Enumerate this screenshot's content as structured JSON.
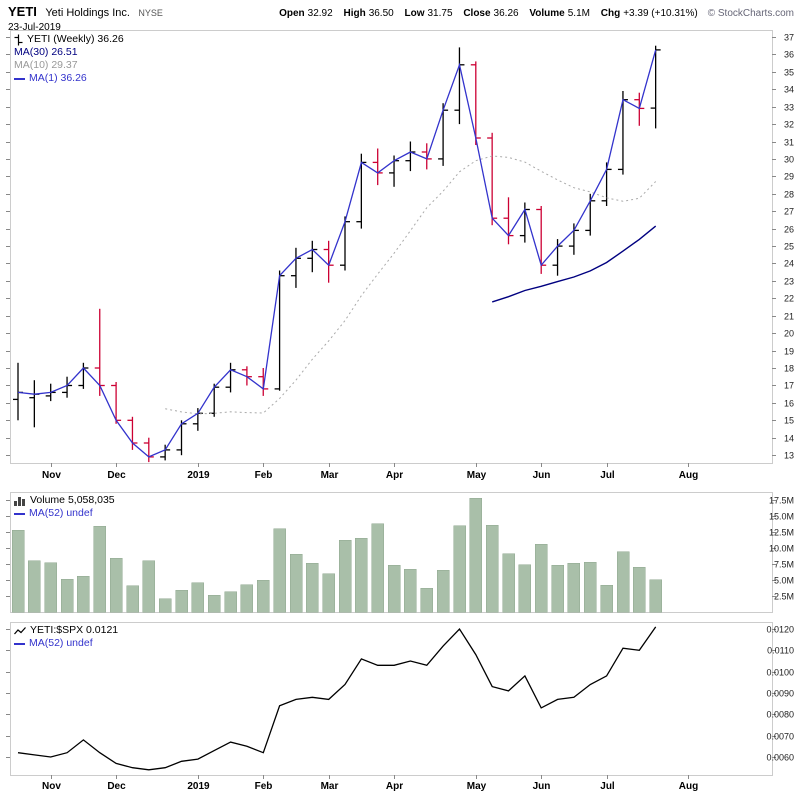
{
  "header": {
    "symbol": "YETI",
    "company": "Yeti Holdings Inc.",
    "exchange": "NYSE",
    "date": "23-Jul-2019",
    "copyright": "© StockCharts.com",
    "quote": {
      "open_label": "Open",
      "open_value": "32.92",
      "high_label": "High",
      "high_value": "36.50",
      "low_label": "Low",
      "low_value": "31.75",
      "close_label": "Close",
      "close_value": "36.26",
      "volume_label": "Volume",
      "volume_value": "5.1M",
      "chg_label": "Chg",
      "chg_value": "+3.39 (+10.31%)"
    }
  },
  "legends": {
    "price": {
      "main": "YETI (Weekly) 36.26",
      "ma30": "MA(30) 26.51",
      "ma10": "MA(10) 29.37",
      "ma1": "MA(1) 36.26"
    },
    "volume": {
      "main": "Volume 5,058,035",
      "ma52": "MA(52) undef"
    },
    "ratio": {
      "main": "YETI:$SPX 0.0121",
      "ma52": "MA(52) undef"
    }
  },
  "colors": {
    "up_bar": "#000000",
    "down_bar": "#cc0033",
    "close_line": "#3333cc",
    "ma10_line": "#aaaaaa",
    "ma30_line": "#000080",
    "volume_bar": "#a9bfa9",
    "volume_bar_edge": "#8fa78f",
    "ratio_line": "#000000",
    "axis_text": "#222222",
    "tick": "#888888",
    "panel_border": "#cccccc"
  },
  "chart_data": [
    {
      "type": "ohlc",
      "title": "YETI (Weekly)",
      "timeframe": "weekly",
      "dates": [
        "2018-10-22",
        "2018-10-29",
        "2018-11-05",
        "2018-11-12",
        "2018-11-19",
        "2018-11-26",
        "2018-12-03",
        "2018-12-10",
        "2018-12-17",
        "2018-12-24",
        "2018-12-31",
        "2019-01-07",
        "2019-01-14",
        "2019-01-21",
        "2019-01-28",
        "2019-02-04",
        "2019-02-11",
        "2019-02-18",
        "2019-02-25",
        "2019-03-04",
        "2019-03-11",
        "2019-03-18",
        "2019-03-25",
        "2019-04-01",
        "2019-04-08",
        "2019-04-15",
        "2019-04-22",
        "2019-04-29",
        "2019-05-06",
        "2019-05-13",
        "2019-05-20",
        "2019-05-27",
        "2019-06-03",
        "2019-06-10",
        "2019-06-17",
        "2019-06-24",
        "2019-07-01",
        "2019-07-08",
        "2019-07-15",
        "2019-07-22"
      ],
      "open": [
        16.2,
        16.3,
        16.4,
        16.6,
        17.0,
        18.0,
        17.0,
        15.0,
        13.7,
        12.9,
        13.3,
        14.8,
        15.4,
        16.9,
        17.9,
        17.5,
        16.8,
        23.3,
        24.3,
        24.8,
        23.9,
        26.4,
        29.8,
        29.2,
        29.9,
        30.4,
        30.0,
        32.8,
        35.4,
        31.2,
        26.6,
        25.6,
        27.1,
        23.9,
        25.0,
        25.9,
        27.6,
        29.4,
        33.4,
        32.92
      ],
      "high": [
        18.3,
        17.3,
        17.1,
        17.5,
        18.3,
        21.4,
        17.2,
        15.2,
        14.0,
        13.6,
        15.0,
        15.7,
        17.1,
        18.3,
        18.1,
        18.0,
        23.6,
        24.9,
        25.3,
        25.3,
        26.7,
        30.3,
        30.6,
        30.2,
        31.0,
        30.9,
        33.2,
        36.4,
        35.6,
        31.5,
        27.8,
        27.5,
        27.3,
        25.4,
        26.3,
        28.0,
        29.8,
        33.9,
        33.8,
        36.5
      ],
      "low": [
        15.0,
        14.6,
        16.1,
        16.3,
        16.8,
        16.4,
        14.8,
        13.3,
        12.6,
        12.7,
        13.0,
        14.4,
        15.2,
        16.6,
        17.0,
        16.4,
        16.7,
        22.6,
        23.5,
        22.9,
        23.6,
        26.0,
        28.5,
        28.4,
        29.3,
        29.4,
        29.6,
        32.0,
        30.8,
        26.2,
        25.1,
        25.2,
        23.4,
        23.3,
        24.5,
        25.6,
        27.3,
        29.1,
        31.9,
        31.75
      ],
      "close": [
        16.6,
        16.5,
        16.6,
        17.0,
        18.0,
        17.0,
        15.0,
        13.7,
        12.9,
        13.3,
        14.8,
        15.4,
        16.9,
        17.9,
        17.5,
        16.8,
        23.3,
        24.3,
        24.8,
        23.9,
        26.4,
        29.8,
        29.2,
        29.9,
        30.4,
        30.0,
        32.8,
        35.4,
        31.2,
        26.6,
        25.6,
        27.1,
        23.9,
        25.0,
        25.9,
        27.6,
        29.4,
        33.4,
        32.9,
        36.26
      ],
      "y_ticks": [
        13,
        14,
        15,
        16,
        17,
        18,
        19,
        20,
        21,
        22,
        23,
        24,
        25,
        26,
        27,
        28,
        29,
        30,
        31,
        32,
        33,
        34,
        35,
        36,
        37
      ],
      "ylim": [
        12.55,
        37.4
      ],
      "x_tick_labels": [
        "Nov",
        "Dec",
        "2019",
        "Feb",
        "Mar",
        "Apr",
        "May",
        "Jun",
        "Jul",
        "Aug"
      ],
      "x_tick_indices": [
        2,
        6,
        11,
        15,
        19,
        23,
        28,
        32,
        36,
        41
      ],
      "overlays": [
        {
          "name": "MA(30)",
          "period": 30,
          "value": 26.51
        },
        {
          "name": "MA(10)",
          "period": 10,
          "value": 29.37
        },
        {
          "name": "MA(1)",
          "period": 1,
          "value": 36.26
        }
      ],
      "grid": false,
      "legend_position": "top-left"
    },
    {
      "type": "bar",
      "title": "Volume",
      "values_millions": [
        12.8,
        8.0,
        7.7,
        5.1,
        5.6,
        13.4,
        8.4,
        4.1,
        8.0,
        2.1,
        3.4,
        4.6,
        2.6,
        3.2,
        4.3,
        5.0,
        13.0,
        9.0,
        7.6,
        6.0,
        11.2,
        11.5,
        13.8,
        7.3,
        6.7,
        3.7,
        6.5,
        13.5,
        17.8,
        13.6,
        9.1,
        7.4,
        10.6,
        7.3,
        7.6,
        7.8,
        4.2,
        9.4,
        7.0,
        5.058
      ],
      "last_volume": "5,058,035",
      "y_ticks": [
        "2.5M",
        "5.0M",
        "7.5M",
        "10.0M",
        "12.5M",
        "15.0M",
        "17.5M"
      ],
      "y_tick_values": [
        2.5,
        5,
        7.5,
        10,
        12.5,
        15,
        17.5
      ],
      "ylim_millions": [
        0,
        18.75
      ],
      "overlays": [
        {
          "name": "MA(52)",
          "period": 52,
          "value": "undef"
        }
      ],
      "x_shared_with_price": true
    },
    {
      "type": "line",
      "title": "YETI:$SPX",
      "values": [
        0.0062,
        0.0061,
        0.006,
        0.0062,
        0.0068,
        0.0062,
        0.0057,
        0.0055,
        0.0054,
        0.0055,
        0.0058,
        0.0059,
        0.0063,
        0.0067,
        0.0065,
        0.0062,
        0.0084,
        0.0087,
        0.0088,
        0.0087,
        0.0094,
        0.0106,
        0.0103,
        0.0103,
        0.0105,
        0.0103,
        0.0112,
        0.012,
        0.0108,
        0.0093,
        0.0091,
        0.0098,
        0.0083,
        0.0087,
        0.0088,
        0.0094,
        0.0098,
        0.0111,
        0.011,
        0.0121
      ],
      "last_value": 0.0121,
      "y_ticks": [
        "0.0060",
        "0.0070",
        "0.0080",
        "0.0090",
        "0.0100",
        "0.0110",
        "0.0120"
      ],
      "y_tick_values": [
        0.006,
        0.007,
        0.008,
        0.009,
        0.01,
        0.011,
        0.012
      ],
      "ylim": [
        0.00516,
        0.01233
      ],
      "overlays": [
        {
          "name": "MA(52)",
          "period": 52,
          "value": "undef"
        }
      ],
      "x_shared_with_price": true
    }
  ]
}
